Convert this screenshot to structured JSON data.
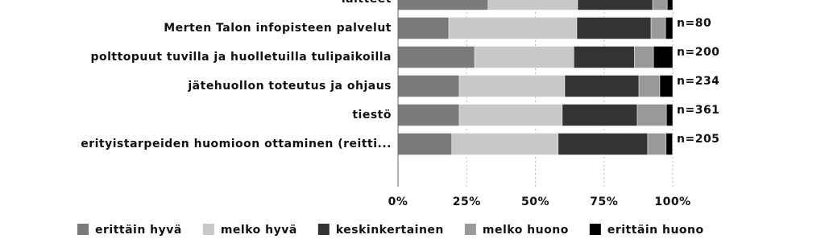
{
  "chart_data": {
    "type": "stacked-bar-horizontal",
    "categories": [
      "laitteet",
      "Merten Talon infopisteen palvelut",
      "polttopuut tuvilla ja huolletuilla tulipaikoilla",
      "jätehuollon toteutus ja ohjaus",
      "tiestö",
      "erityistarpeiden huomioon ottaminen (reitti..."
    ],
    "annotations": [
      null,
      "n=80",
      "n=200",
      "n=234",
      "n=361",
      "n=205"
    ],
    "series": [
      {
        "name": "erittäin hyvä",
        "color": "#7a7a7a",
        "values": [
          32.8,
          18.5,
          27.9,
          22.3,
          22.3,
          19.6
        ]
      },
      {
        "name": "melko hyvä",
        "color": "#c8c8c8",
        "values": [
          32.6,
          46.6,
          36.1,
          38.4,
          37.5,
          38.7
        ]
      },
      {
        "name": "keskinkertainen",
        "color": "#333333",
        "values": [
          27.3,
          27.0,
          22.0,
          27.0,
          27.3,
          32.6
        ]
      },
      {
        "name": "melko huono",
        "color": "#999999",
        "values": [
          5.3,
          5.3,
          7.0,
          7.6,
          10.6,
          6.7
        ]
      },
      {
        "name": "erittäin huono",
        "color": "#000000",
        "values": [
          2.0,
          2.6,
          7.0,
          4.7,
          2.3,
          2.3
        ]
      }
    ],
    "xlim": [
      0,
      100
    ],
    "xticks": [
      {
        "value": 0,
        "label": "0%"
      },
      {
        "value": 25,
        "label": "25%"
      },
      {
        "value": 50,
        "label": "50%"
      },
      {
        "value": 75,
        "label": "75%"
      },
      {
        "value": 100,
        "label": "100%"
      }
    ],
    "grid": true
  }
}
